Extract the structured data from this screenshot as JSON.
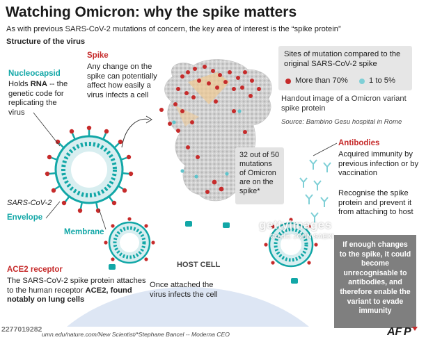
{
  "title": "Watching Omicron: why the spike matters",
  "subtitle": "As with previous SARS-CoV-2 mutations of concern, the key area of interest is the “spike protein”",
  "structure_heading": "Structure of the virus",
  "nucleocapsid": {
    "heading": "Nucleocapsid",
    "text_pre": "Holds ",
    "text_bold": "RNA",
    "text_post": " -- the genetic code for replicating the virus"
  },
  "spike": {
    "heading": "Spike",
    "text": "Any change on the spike can potentially affect how easily a virus infects a cell"
  },
  "legend": {
    "title": "Sites of mutation compared to the original SARS-CoV-2 spike",
    "item_red": "More than 70%",
    "item_teal": "1 to 5%",
    "color_red": "#c62b2b",
    "color_teal": "#7ecfd6"
  },
  "handout": "Handout image of a Omicron variant spike protein",
  "source": "Source: Bambino Gesu hospital in Rome",
  "mutation_box": "32 out of 50 mutations of Omicron are on the spike*",
  "labels": {
    "sars": "SARS-CoV-2",
    "envelope": "Envelope",
    "membrane": "Membrane",
    "host_cell": "HOST CELL"
  },
  "antibodies": {
    "heading": "Antibodies",
    "text1": "Acquired immunity by previous infection or by vaccination",
    "text2": "Recognise the spike protein and prevent it from attaching to host"
  },
  "ace2": {
    "heading": "ACE2 receptor",
    "text_pre": "The SARS-CoV-2 spike protein attaches to the human receptor ",
    "text_bold": "ACE2, found notably on lung cells"
  },
  "attached": "Once attached the virus infects the cell",
  "enough": "If enough changes to the spike, it could become unrecognisable to antibodies, and therefore enable the variant to evade immunity",
  "credit": "umn.edu/nature.com/New Scientist/*Stephane Bancel -- Moderna CEO",
  "photo_id": "2277019282",
  "watermark": "gettyimages",
  "watermark_credit": "Credit: JOHN SAEKI",
  "afp": "AFP",
  "colors": {
    "red": "#c62b2b",
    "teal": "#12a7a7",
    "host": "#dde6f4"
  }
}
